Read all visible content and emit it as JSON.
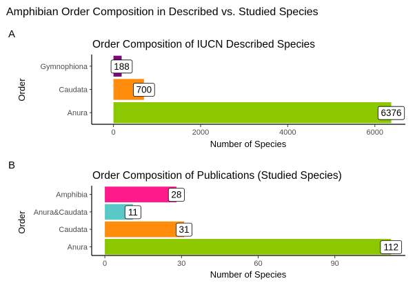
{
  "figure_title": "Amphibian Order Composition in Described vs. Studied Species",
  "chart_data": [
    {
      "type": "bar",
      "orientation": "horizontal",
      "panel": "A",
      "title": "Order Composition of IUCN Described Species",
      "xlabel": "Number of Species",
      "ylabel": "Order",
      "categories": [
        "Anura",
        "Caudata",
        "Gymnophiona"
      ],
      "values": [
        6376,
        700,
        188
      ],
      "colors": [
        "#8cc800",
        "#ff8c0a",
        "#7b0a7b"
      ],
      "xlim": [
        -500,
        6700
      ],
      "xticks": [
        0,
        2000,
        4000,
        6000
      ],
      "grid": false,
      "legend": "none"
    },
    {
      "type": "bar",
      "orientation": "horizontal",
      "panel": "B",
      "title": "Order Composition of Publications (Studied Species)",
      "xlabel": "Number of Species",
      "ylabel": "Order",
      "categories": [
        "Anura",
        "Caudata",
        "Anura&Caudata",
        "Amphibia"
      ],
      "values": [
        112,
        31,
        11,
        28
      ],
      "colors": [
        "#8cc800",
        "#ff8c0a",
        "#5bc8c8",
        "#ff1a8c"
      ],
      "xlim": [
        -5.15,
        117.6
      ],
      "xticks": [
        0,
        30,
        60,
        90
      ],
      "grid": false,
      "legend": "none"
    }
  ]
}
